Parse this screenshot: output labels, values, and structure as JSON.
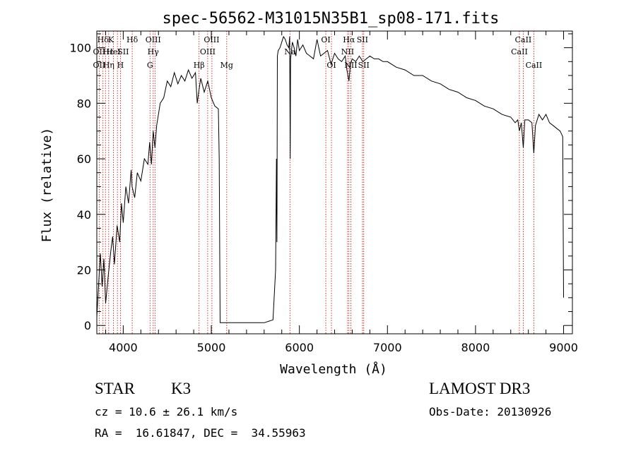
{
  "chart_data": {
    "type": "line",
    "title": "spec-56562-M31015N35B1_sp08-171.fits",
    "xlabel": "Wavelength (Å)",
    "ylabel": "Flux (relative)",
    "xlim": [
      3700,
      9100
    ],
    "ylim": [
      -3,
      106
    ],
    "xticks": [
      4000,
      5000,
      6000,
      7000,
      8000,
      9000
    ],
    "yticks": [
      0,
      20,
      40,
      60,
      80,
      100
    ],
    "grid": false,
    "series": [
      {
        "name": "flux",
        "x": [
          3700,
          3740,
          3760,
          3780,
          3800,
          3830,
          3860,
          3880,
          3900,
          3930,
          3960,
          3980,
          4000,
          4030,
          4060,
          4090,
          4100,
          4130,
          4160,
          4200,
          4240,
          4280,
          4300,
          4320,
          4340,
          4360,
          4380,
          4420,
          4460,
          4500,
          4540,
          4580,
          4620,
          4660,
          4700,
          4740,
          4780,
          4820,
          4840,
          4861,
          4880,
          4920,
          4960,
          5000,
          5040,
          5080,
          5090,
          5100,
          5120,
          5200,
          5400,
          5600,
          5700,
          5730,
          5740,
          5745,
          5750,
          5760,
          5780,
          5800,
          5820,
          5840,
          5860,
          5880,
          5890,
          5896,
          5900,
          5920,
          5940,
          5960,
          5980,
          6000,
          6040,
          6080,
          6120,
          6160,
          6200,
          6240,
          6280,
          6320,
          6360,
          6400,
          6440,
          6480,
          6520,
          6540,
          6563,
          6580,
          6600,
          6640,
          6680,
          6720,
          6760,
          6800,
          6850,
          6900,
          6950,
          7000,
          7100,
          7200,
          7300,
          7400,
          7500,
          7600,
          7700,
          7800,
          7900,
          8000,
          8100,
          8200,
          8300,
          8400,
          8450,
          8480,
          8498,
          8520,
          8542,
          8560,
          8600,
          8640,
          8662,
          8680,
          8720,
          8760,
          8800,
          8840,
          8880,
          8920,
          8960,
          8990,
          9000
        ],
        "values": [
          3,
          26,
          14,
          24,
          8,
          18,
          27,
          32,
          22,
          36,
          30,
          44,
          37,
          50,
          44,
          56,
          50,
          46,
          55,
          52,
          60,
          58,
          66,
          58,
          70,
          64,
          72,
          80,
          82,
          88,
          86,
          91,
          87,
          90,
          88,
          92,
          89,
          91,
          80,
          85,
          89,
          84,
          88,
          82,
          79,
          78,
          60,
          1,
          1,
          1,
          1,
          1,
          2,
          20,
          60,
          30,
          97,
          99,
          100,
          102,
          104,
          103,
          101,
          100,
          104,
          60,
          96,
          102,
          100,
          97,
          103,
          99,
          101,
          98,
          97,
          96,
          103,
          97,
          98,
          99,
          94,
          98,
          96,
          95,
          97,
          92,
          88,
          94,
          96,
          95,
          97,
          95,
          96,
          97,
          96,
          96,
          95,
          95,
          93,
          92,
          90,
          90,
          88,
          87,
          85,
          84,
          82,
          81,
          79,
          78,
          76,
          75,
          73,
          74,
          70,
          73,
          64,
          74,
          74,
          73,
          62,
          72,
          76,
          74,
          76,
          73,
          72,
          71,
          70,
          68,
          10
        ]
      }
    ],
    "line_labels": [
      {
        "text": "Hδ",
        "x": 3770,
        "row": 0
      },
      {
        "text": "OII",
        "x": 3727,
        "row": 1
      },
      {
        "text": "OII",
        "x": 3727,
        "row": 2
      },
      {
        "text": "K",
        "x": 3860,
        "row": 0
      },
      {
        "text": "Hε",
        "x": 3830,
        "row": 1
      },
      {
        "text": "Hη",
        "x": 3835,
        "row": 2
      },
      {
        "text": "HeI",
        "x": 3889,
        "row": 1
      },
      {
        "text": "H",
        "x": 3968,
        "row": 2
      },
      {
        "text": "SII",
        "x": 4000,
        "row": 1
      },
      {
        "text": "Hδ",
        "x": 4102,
        "row": 0
      },
      {
        "text": "OIII",
        "x": 4340,
        "row": 0
      },
      {
        "text": "Hγ",
        "x": 4340,
        "row": 1
      },
      {
        "text": "G",
        "x": 4304,
        "row": 2
      },
      {
        "text": "OIII",
        "x": 5003,
        "row": 0
      },
      {
        "text": "OIII",
        "x": 4959,
        "row": 1
      },
      {
        "text": "Hβ",
        "x": 4861,
        "row": 2
      },
      {
        "text": "Mg",
        "x": 5175,
        "row": 2
      },
      {
        "text": "Na",
        "x": 5893,
        "row": 1
      },
      {
        "text": "OI",
        "x": 6300,
        "row": 0
      },
      {
        "text": "OI",
        "x": 6364,
        "row": 2
      },
      {
        "text": "Hα",
        "x": 6563,
        "row": 0
      },
      {
        "text": "SII",
        "x": 6716,
        "row": 0
      },
      {
        "text": "NII",
        "x": 6548,
        "row": 1
      },
      {
        "text": "NII",
        "x": 6584,
        "row": 2
      },
      {
        "text": "SII",
        "x": 6731,
        "row": 2
      },
      {
        "text": "CaII",
        "x": 8542,
        "row": 0
      },
      {
        "text": "CaII",
        "x": 8498,
        "row": 1
      },
      {
        "text": "CaII",
        "x": 8662,
        "row": 2
      }
    ],
    "marker_lines": [
      3727,
      3770,
      3798,
      3835,
      3889,
      3934,
      3968,
      4102,
      4304,
      4340,
      4363,
      4861,
      4959,
      5007,
      5175,
      5893,
      6300,
      6364,
      6548,
      6563,
      6584,
      6716,
      6731,
      8498,
      8542,
      8662
    ]
  },
  "info": {
    "object_class": "STAR",
    "subclass": "K3",
    "release": "LAMOST DR3",
    "redshift_line": "cz = 10.6 ± 26.1 km/s",
    "obs_date_line": "Obs-Date: 20130926",
    "coords_line": "RA =  16.61847, DEC =  34.55963"
  },
  "colors": {
    "spectrum": "#000000",
    "marker": "#cc0000",
    "axis": "#000000",
    "background": "#ffffff"
  }
}
